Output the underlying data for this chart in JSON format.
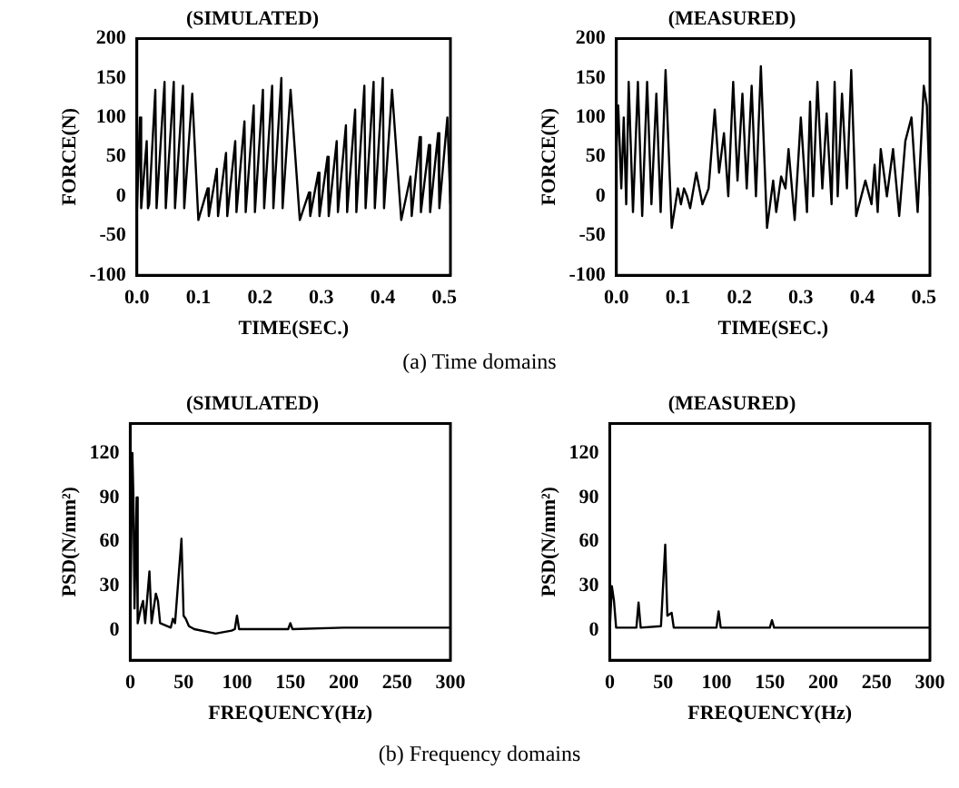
{
  "chart_data": [
    {
      "type": "line",
      "title": "(SIMULATED)",
      "xlabel": "TIME(SEC.)",
      "ylabel": "FORCE(N)",
      "xlim": [
        0,
        0.51
      ],
      "xticks": [
        {
          "value": 0,
          "label": "0.0"
        },
        0.1,
        0.2,
        0.3,
        0.4,
        0.5
      ],
      "ylim": [
        -100,
        200
      ],
      "yticks": [
        -100,
        -50,
        0,
        50,
        100,
        150,
        200
      ],
      "annotations": [
        "(a) Time domains"
      ],
      "series": [
        {
          "color": "#000000",
          "x": [
            0,
            0.005,
            0.007,
            0.016,
            0.018,
            0.02,
            0.03,
            0.032,
            0.045,
            0.047,
            0.06,
            0.062,
            0.075,
            0.077,
            0.09,
            0.1,
            0.115,
            0.117,
            0.13,
            0.132,
            0.145,
            0.147,
            0.16,
            0.162,
            0.175,
            0.177,
            0.19,
            0.192,
            0.205,
            0.207,
            0.22,
            0.222,
            0.235,
            0.237,
            0.25,
            0.265,
            0.28,
            0.282,
            0.295,
            0.297,
            0.31,
            0.312,
            0.325,
            0.327,
            0.34,
            0.342,
            0.355,
            0.357,
            0.37,
            0.372,
            0.385,
            0.387,
            0.4,
            0.402,
            0.415,
            0.43,
            0.445,
            0.447,
            0.46,
            0.462,
            0.475,
            0.477,
            0.49,
            0.492,
            0.505,
            0.51
          ],
          "values": [
            -20,
            100,
            -15,
            70,
            -15,
            -10,
            135,
            -15,
            145,
            -15,
            145,
            -15,
            140,
            -15,
            130,
            -30,
            10,
            -25,
            35,
            -25,
            55,
            -25,
            70,
            -20,
            95,
            -20,
            115,
            -20,
            135,
            -15,
            140,
            -15,
            150,
            -15,
            135,
            -30,
            5,
            -25,
            30,
            -25,
            50,
            -25,
            70,
            -20,
            90,
            -20,
            110,
            -20,
            140,
            -15,
            145,
            -15,
            150,
            -15,
            135,
            -30,
            25,
            -25,
            75,
            -20,
            65,
            -20,
            80,
            -15,
            100,
            -10
          ]
        }
      ]
    },
    {
      "type": "line",
      "title": "(MEASURED)",
      "xlabel": "TIME(SEC.)",
      "ylabel": "FORCE(N)",
      "xlim": [
        0,
        0.51
      ],
      "xticks": [
        {
          "value": 0,
          "label": "0.0"
        },
        0.1,
        0.2,
        0.3,
        0.4,
        0.5
      ],
      "ylim": [
        -100,
        200
      ],
      "yticks": [
        -100,
        -50,
        0,
        50,
        100,
        150,
        200
      ],
      "series": [
        {
          "color": "#000000",
          "x": [
            0,
            0.003,
            0.008,
            0.012,
            0.016,
            0.02,
            0.027,
            0.035,
            0.042,
            0.05,
            0.057,
            0.065,
            0.072,
            0.08,
            0.09,
            0.1,
            0.105,
            0.11,
            0.115,
            0.12,
            0.13,
            0.14,
            0.15,
            0.16,
            0.167,
            0.175,
            0.182,
            0.19,
            0.197,
            0.205,
            0.212,
            0.22,
            0.227,
            0.235,
            0.245,
            0.255,
            0.26,
            0.268,
            0.275,
            0.28,
            0.29,
            0.3,
            0.31,
            0.315,
            0.32,
            0.327,
            0.335,
            0.342,
            0.35,
            0.355,
            0.36,
            0.367,
            0.375,
            0.382,
            0.39,
            0.405,
            0.415,
            0.42,
            0.425,
            0.43,
            0.44,
            0.45,
            0.46,
            0.47,
            0.48,
            0.49,
            0.5,
            0.505,
            0.51
          ],
          "values": [
            60,
            115,
            10,
            100,
            -10,
            145,
            -20,
            145,
            -25,
            145,
            -10,
            130,
            -20,
            160,
            -40,
            10,
            -10,
            10,
            0,
            -15,
            30,
            -10,
            10,
            110,
            30,
            80,
            0,
            145,
            20,
            130,
            10,
            140,
            0,
            165,
            -40,
            20,
            -20,
            25,
            10,
            60,
            -30,
            100,
            -20,
            120,
            0,
            145,
            10,
            105,
            -10,
            145,
            0,
            130,
            10,
            160,
            -25,
            20,
            -10,
            40,
            -20,
            60,
            0,
            60,
            -25,
            70,
            100,
            -20,
            140,
            115,
            0
          ]
        }
      ]
    },
    {
      "type": "line",
      "title": "(SIMULATED)",
      "xlabel": "FREQUENCY(Hz)",
      "ylabel": "PSD(N/mm²)",
      "xlim": [
        0,
        300
      ],
      "xticks": [
        0,
        50,
        100,
        150,
        200,
        250,
        300
      ],
      "ylim": [
        -20,
        140
      ],
      "yticks": [
        0,
        30,
        60,
        90,
        120
      ],
      "annotations": [
        "(b) Frequency domains"
      ],
      "series": [
        {
          "color": "#000000",
          "x": [
            0,
            2,
            3,
            4,
            6,
            7,
            10,
            12,
            14,
            18,
            20,
            24,
            26,
            28,
            38,
            40,
            42,
            48,
            50,
            52,
            55,
            60,
            80,
            95,
            98,
            100,
            102,
            148,
            150,
            152,
            200,
            300
          ],
          "values": [
            0,
            120,
            90,
            15,
            90,
            5,
            15,
            20,
            5,
            40,
            5,
            25,
            20,
            5,
            2,
            8,
            5,
            62,
            10,
            8,
            3,
            1,
            -2,
            0,
            1,
            10,
            1,
            1,
            5,
            1,
            2,
            2
          ]
        }
      ]
    },
    {
      "type": "line",
      "title": "(MEASURED)",
      "xlabel": "FREQUENCY(Hz)",
      "ylabel": "PSD(N/mm²)",
      "xlim": [
        0,
        300
      ],
      "xticks": [
        0,
        50,
        100,
        150,
        200,
        250,
        300
      ],
      "ylim": [
        -20,
        140
      ],
      "yticks": [
        0,
        30,
        60,
        90,
        120
      ],
      "series": [
        {
          "color": "#000000",
          "x": [
            0,
            2,
            4,
            6,
            25,
            27,
            29,
            48,
            52,
            54,
            58,
            60,
            100,
            102,
            104,
            150,
            152,
            154,
            300
          ],
          "values": [
            0,
            30,
            20,
            2,
            2,
            19,
            2,
            3,
            58,
            10,
            12,
            2,
            2,
            13,
            2,
            2,
            7,
            2,
            2
          ]
        }
      ]
    }
  ]
}
